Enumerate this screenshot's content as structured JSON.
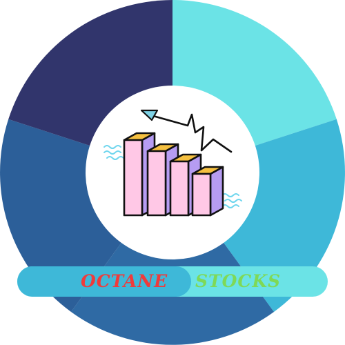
{
  "brand": {
    "word_left": "OCTANE",
    "word_right": "STOCKS"
  },
  "colors": {
    "segment_light_cyan": "#6be3e6",
    "segment_mid_cyan": "#3eb8d8",
    "segment_blue": "#2c5f99",
    "segment_blue_bottom": "#2f6aa4",
    "segment_navy": "#31356c",
    "center_circle": "#ffffff",
    "banner_left": "#3eb8d8",
    "banner_right": "#6be3e6",
    "text_left": "#ef3b3b",
    "text_right": "#7ed957",
    "bar_front": "#ffc8e6",
    "bar_side": "#b69cf2",
    "bar_top": "#f5c040",
    "arrow_head": "#7fd3e6",
    "wave": "#6fd6ee"
  },
  "icons": [
    "bar-chart-icon",
    "trend-arrow-icon",
    "wave-icon"
  ]
}
